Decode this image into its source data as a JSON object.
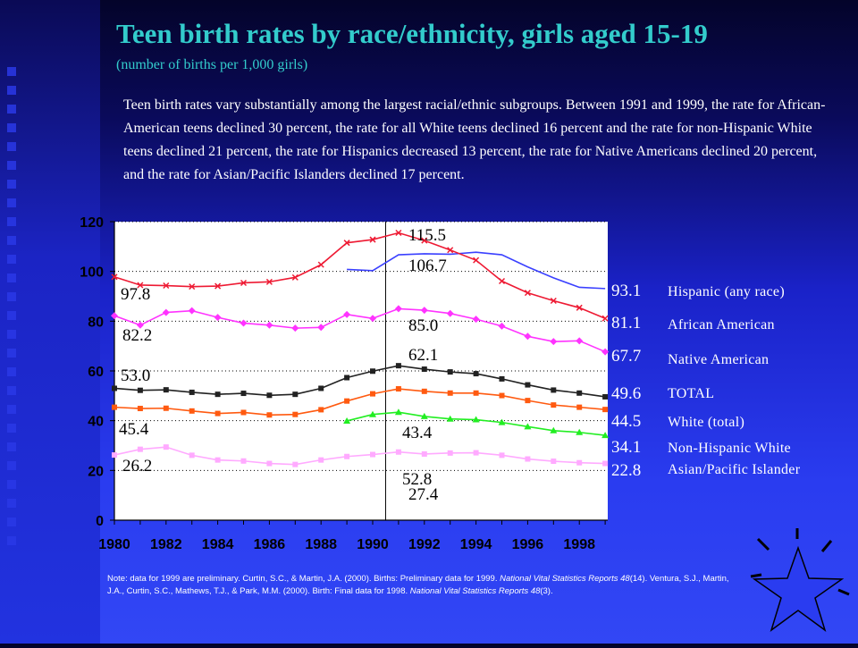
{
  "header": {
    "title": "Teen birth rates by race/ethnicity, girls aged 15-19",
    "subtitle": "(number of births per 1,000 girls)"
  },
  "description": "Teen birth rates vary substantially among the largest racial/ethnic subgroups. Between 1991 and 1999, the rate for African-American teens declined 30 percent, the rate for all White teens declined 16 percent and the rate for non-Hispanic White teens declined 21 percent, the rate for Hispanics decreased 13 percent, the rate for Native Americans declined 20 percent, and the rate for Asian/Pacific Islanders declined 17 percent.",
  "note": {
    "part1": "Note: data for 1999 are preliminary.  Curtin, S.C., & Martin, J.A. (2000). Births: Preliminary data for 1999.",
    "part2_italic": "National Vital Statistics Reports 48",
    "part3": "(14).  Ventura, S.J., Martin, J.A., Curtin, S.C., Mathews, T.J., & Park, M.M. (2000). Birth: Final data for 1998.",
    "part4_italic": "National Vital Statistics Reports 48",
    "part5": "(3)."
  },
  "chart_data": {
    "type": "line",
    "x": [
      1980,
      1981,
      1982,
      1983,
      1984,
      1985,
      1986,
      1987,
      1988,
      1989,
      1990,
      1991,
      1992,
      1993,
      1994,
      1995,
      1996,
      1997,
      1998,
      1999
    ],
    "xticks": [
      "1980",
      "1982",
      "1984",
      "1986",
      "1988",
      "1990",
      "1992",
      "1994",
      "1996",
      "1998"
    ],
    "yticks": [
      "0",
      "20",
      "40",
      "60",
      "80",
      "100",
      "120"
    ],
    "ylim": [
      0,
      120
    ],
    "grid": true,
    "reference_line_x": 1990.5,
    "series": [
      {
        "name": "Hispanic (any race)",
        "color": "#3a40ff",
        "marker": "none",
        "values": [
          null,
          null,
          null,
          null,
          null,
          null,
          null,
          null,
          null,
          100.8,
          100.3,
          106.7,
          107.1,
          106.9,
          107.7,
          106.7,
          101.8,
          97.4,
          93.6,
          93.1
        ]
      },
      {
        "name": "African American",
        "color": "#ee1a33",
        "marker": "x",
        "values": [
          97.8,
          94.5,
          94.3,
          93.9,
          94.1,
          95.4,
          95.8,
          97.6,
          102.7,
          111.5,
          112.8,
          115.5,
          112.4,
          108.6,
          104.5,
          96.1,
          91.4,
          88.2,
          85.4,
          81.1
        ]
      },
      {
        "name": "Native American",
        "color": "#ff33ff",
        "marker": "diamond",
        "values": [
          82.2,
          78.4,
          83.5,
          84.2,
          81.5,
          79.2,
          78.4,
          77.2,
          77.5,
          82.7,
          81.1,
          85.0,
          84.4,
          83.1,
          80.8,
          78.0,
          73.9,
          71.8,
          72.1,
          67.7
        ]
      },
      {
        "name": "TOTAL",
        "color": "#222222",
        "marker": "square",
        "values": [
          53.0,
          52.2,
          52.4,
          51.4,
          50.6,
          51.0,
          50.2,
          50.6,
          53.0,
          57.3,
          59.9,
          62.1,
          60.7,
          59.6,
          58.9,
          56.8,
          54.4,
          52.3,
          51.1,
          49.6
        ]
      },
      {
        "name": "White (total)",
        "color": "#ff5a10",
        "marker": "square",
        "values": [
          45.4,
          44.9,
          45.0,
          43.9,
          42.9,
          43.3,
          42.3,
          42.5,
          44.4,
          47.9,
          50.8,
          52.8,
          51.8,
          51.1,
          51.1,
          50.1,
          48.1,
          46.3,
          45.4,
          44.5
        ]
      },
      {
        "name": "Non-Hispanic White",
        "color": "#22ee22",
        "marker": "triangle",
        "values": [
          null,
          null,
          null,
          null,
          null,
          null,
          null,
          null,
          null,
          39.9,
          42.5,
          43.4,
          41.7,
          40.7,
          40.4,
          39.3,
          37.6,
          36.0,
          35.3,
          34.1
        ]
      },
      {
        "name": "Asian/Pacific Islander",
        "color": "#ffaaff",
        "marker": "square",
        "values": [
          26.2,
          28.5,
          29.4,
          26.1,
          24.2,
          23.8,
          22.8,
          22.4,
          24.2,
          25.6,
          26.4,
          27.4,
          26.6,
          27.0,
          27.1,
          26.1,
          24.6,
          23.7,
          23.1,
          22.8
        ]
      }
    ],
    "annotations": [
      {
        "text": "115.5",
        "x": 1991,
        "y": 115.5
      },
      {
        "text": "106.7",
        "x": 1991,
        "y": 106.7
      },
      {
        "text": "85.0",
        "x": 1991,
        "y": 85.0
      },
      {
        "text": "62.1",
        "x": 1991,
        "y": 62.1
      },
      {
        "text": "52.8",
        "x": 1991,
        "y": 52.8
      },
      {
        "text": "43.4",
        "x": 1991,
        "y": 43.4
      },
      {
        "text": "27.4",
        "x": 1991,
        "y": 27.4
      },
      {
        "text": "97.8",
        "x": 1980,
        "y": 97.8
      },
      {
        "text": "82.2",
        "x": 1980,
        "y": 82.2
      },
      {
        "text": "53.0",
        "x": 1980,
        "y": 53.0
      },
      {
        "text": "45.4",
        "x": 1980,
        "y": 45.4
      },
      {
        "text": "26.2",
        "x": 1980,
        "y": 26.2
      },
      {
        "text": "93.1",
        "x": 1999,
        "y": 93.1
      },
      {
        "text": "81.1",
        "x": 1999,
        "y": 81.1
      },
      {
        "text": "67.7",
        "x": 1999,
        "y": 67.7
      },
      {
        "text": "49.6",
        "x": 1999,
        "y": 49.6
      },
      {
        "text": "44.5",
        "x": 1999,
        "y": 44.5
      },
      {
        "text": "34.1",
        "x": 1999,
        "y": 34.1
      },
      {
        "text": "22.8",
        "x": 1999,
        "y": 22.8
      }
    ],
    "legend_text_color": "#ffffff",
    "data_label_color": "#ffffff"
  }
}
